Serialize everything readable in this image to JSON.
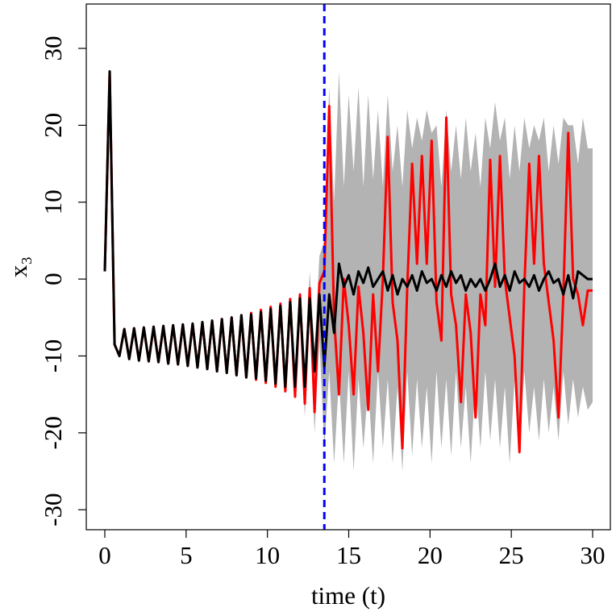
{
  "chart_data": {
    "type": "line",
    "x_label": "time (t)",
    "y_label": "x₃",
    "x": [
      0,
      0.3,
      0.6,
      0.9,
      1.2,
      1.5,
      1.8,
      2.1,
      2.4,
      2.7,
      3.0,
      3.3,
      3.6,
      3.9,
      4.2,
      4.5,
      4.8,
      5.1,
      5.4,
      5.7,
      6.0,
      6.3,
      6.6,
      6.9,
      7.2,
      7.5,
      7.8,
      8.1,
      8.4,
      8.7,
      9.0,
      9.3,
      9.6,
      9.9,
      10.2,
      10.5,
      10.8,
      11.1,
      11.4,
      11.7,
      12.0,
      12.3,
      12.6,
      12.9,
      13.2,
      13.5,
      13.8,
      14.1,
      14.4,
      14.7,
      15.0,
      15.3,
      15.6,
      15.9,
      16.2,
      16.5,
      16.8,
      17.1,
      17.4,
      17.7,
      18.0,
      18.3,
      18.6,
      18.9,
      19.2,
      19.5,
      19.8,
      20.1,
      20.4,
      20.7,
      21.0,
      21.3,
      21.6,
      21.9,
      22.2,
      22.5,
      22.8,
      23.1,
      23.4,
      23.7,
      24.0,
      24.3,
      24.6,
      24.9,
      25.2,
      25.5,
      25.8,
      26.1,
      26.4,
      26.7,
      27.0,
      27.3,
      27.6,
      27.9,
      28.2,
      28.5,
      28.8,
      29.1,
      29.4,
      29.7,
      30.0
    ],
    "band": {
      "color": "#b3b3b3",
      "upper": [
        1.3,
        27.3,
        -8.2,
        -9.7,
        -6.2,
        -10.1,
        -6.1,
        -10.3,
        -6.0,
        -10.4,
        -5.9,
        -10.5,
        -5.8,
        -10.7,
        -5.7,
        -10.8,
        -5.6,
        -11.0,
        -5.5,
        -11.2,
        -5.3,
        -11.4,
        -5.1,
        -11.7,
        -4.9,
        -11.9,
        -4.7,
        -12.2,
        -4.4,
        -12.5,
        -4.3,
        -12.6,
        -4.0,
        -12.9,
        -3.6,
        -13.3,
        -3.2,
        -13.7,
        -2.3,
        -13.5,
        -1.5,
        -12,
        1,
        -9,
        3,
        5,
        25,
        10,
        27,
        12,
        24,
        14,
        25,
        12,
        24,
        13,
        22,
        12,
        24,
        14,
        20,
        12,
        22,
        17,
        21,
        18,
        22,
        19,
        20,
        12,
        22,
        14,
        20,
        13,
        21,
        14,
        19,
        12,
        21,
        17,
        23,
        18,
        21,
        13,
        20,
        14,
        21,
        17,
        20,
        18,
        21,
        14,
        20,
        15,
        21,
        20,
        20,
        15,
        21,
        17,
        17
      ],
      "lower": [
        0.7,
        26.7,
        -8.8,
        -10.3,
        -6.8,
        -10.7,
        -6.7,
        -10.9,
        -6.6,
        -11.0,
        -6.5,
        -11.1,
        -6.4,
        -11.3,
        -6.3,
        -11.4,
        -6.2,
        -11.6,
        -6.1,
        -11.8,
        -5.9,
        -12.0,
        -5.7,
        -12.3,
        -5.5,
        -12.5,
        -5.3,
        -12.8,
        -5.0,
        -13.1,
        -4.9,
        -13.2,
        -4.6,
        -13.5,
        -4.2,
        -13.9,
        -3.8,
        -14.3,
        -3.5,
        -15.5,
        -3,
        -18,
        -5,
        -20,
        -8,
        -22,
        -12,
        -24,
        -13,
        -24,
        -12,
        -25,
        -13,
        -22,
        -14,
        -24,
        -12,
        -22,
        -13,
        -24,
        -14,
        -25,
        -12,
        -23,
        -13,
        -22,
        -14,
        -24,
        -12,
        -22,
        -13,
        -23,
        -12,
        -22,
        -14,
        -24,
        -13,
        -22,
        -12,
        -21,
        -13,
        -22,
        -14,
        -24,
        -13,
        -23,
        -12,
        -20,
        -14,
        -21,
        -13,
        -20,
        -14,
        -21,
        -12,
        -19,
        -13,
        -18,
        -14,
        -17,
        -16
      ]
    },
    "series": [
      {
        "color": "#ff0000",
        "values": [
          1,
          27,
          -8.5,
          -10,
          -6.5,
          -10.4,
          -6.4,
          -10.6,
          -6.3,
          -10.7,
          -6.2,
          -10.8,
          -6.1,
          -11.0,
          -6.0,
          -11.1,
          -5.9,
          -11.3,
          -5.8,
          -11.5,
          -5.6,
          -11.7,
          -5.4,
          -12.0,
          -5.2,
          -12.2,
          -5.0,
          -12.5,
          -4.7,
          -12.8,
          -4.4,
          -13.1,
          -4.0,
          -13.5,
          -3.6,
          -14.0,
          -3.2,
          -14.6,
          -2.6,
          -15.3,
          -2.0,
          -16.2,
          -1.2,
          -17.3,
          -0.5,
          1,
          22.5,
          -5,
          -15,
          0,
          -6,
          -15,
          -1,
          -7,
          -17,
          -2,
          -12,
          0,
          18.5,
          -3,
          -8,
          -22,
          -1,
          15,
          2,
          16,
          2,
          18,
          -3,
          -8,
          21,
          -2,
          -6,
          -16,
          -2,
          -7,
          -18,
          -2,
          -6,
          15.5,
          -1,
          16,
          0,
          -5,
          -10,
          -22.5,
          -1,
          15,
          2,
          16,
          2,
          -3,
          -8,
          -18,
          -2,
          19,
          0,
          -2,
          -6,
          -1.5,
          -1.5
        ]
      },
      {
        "color": "#000000",
        "values": [
          1,
          27,
          -8.5,
          -10,
          -6.5,
          -10.4,
          -6.4,
          -10.6,
          -6.3,
          -10.7,
          -6.2,
          -10.8,
          -6.1,
          -11.0,
          -6.0,
          -11.1,
          -5.9,
          -11.3,
          -5.8,
          -11.5,
          -5.6,
          -11.7,
          -5.4,
          -12.0,
          -5.2,
          -12.2,
          -5.0,
          -12.5,
          -4.7,
          -12.8,
          -4.6,
          -12.9,
          -4.3,
          -13.2,
          -3.9,
          -13.6,
          -3.5,
          -14.0,
          -3.0,
          -14.0,
          -2.5,
          -14.0,
          -2.5,
          -12.0,
          -2.0,
          -11.5,
          -2,
          -7,
          2,
          -1,
          0.5,
          -2,
          1,
          -0.5,
          1.5,
          -1,
          0,
          1,
          -1.5,
          0.5,
          -2,
          0,
          -1,
          0.5,
          -1.5,
          1,
          -0.5,
          0,
          -1.5,
          0.5,
          -1,
          1,
          -0.5,
          0.5,
          -1.5,
          0,
          -1,
          0,
          -1.5,
          0,
          2,
          -1,
          0.5,
          -1.5,
          1,
          -0.5,
          0,
          -1,
          0.5,
          -1.5,
          0,
          1,
          -0.5,
          0,
          -2,
          0.5,
          -2.5,
          1,
          0.5,
          0,
          0
        ]
      }
    ],
    "vline": {
      "x": 13.5,
      "color": "#0000ff"
    },
    "xlim": [
      -1.14,
      31.09
    ],
    "ylim": [
      -32.6,
      35.77
    ],
    "xticks": [
      0,
      5,
      10,
      15,
      20,
      25,
      30
    ],
    "yticks": [
      -30,
      -20,
      -10,
      0,
      10,
      20,
      30
    ]
  }
}
